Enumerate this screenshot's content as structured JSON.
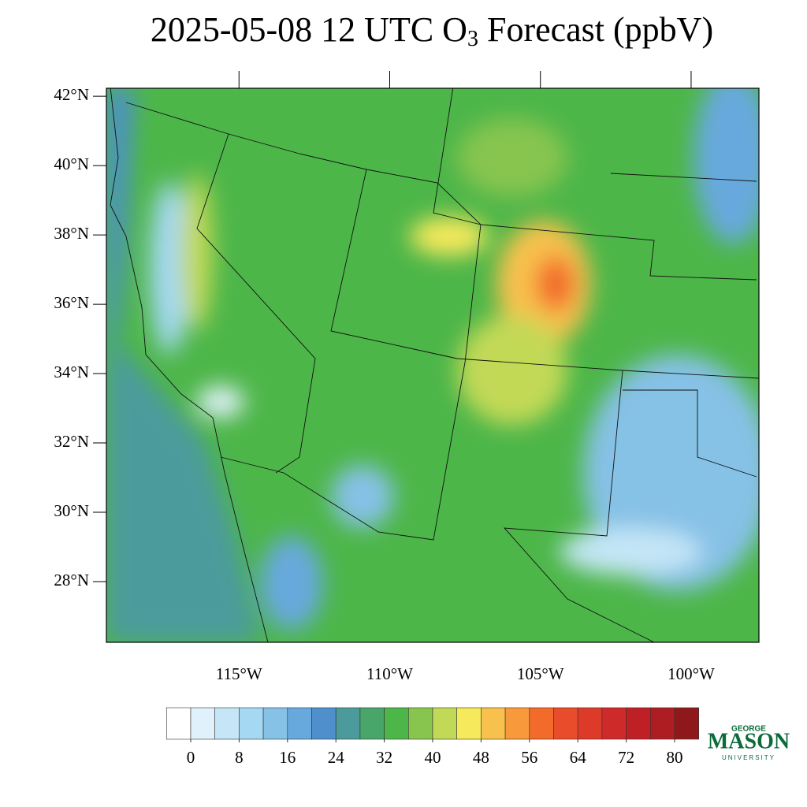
{
  "chart_data": {
    "type": "map",
    "title": {
      "prefix": "2025-05-08 12 UTC O",
      "subscript": "3",
      "suffix": " Forecast (ppbV)"
    },
    "ylim": [
      26.25,
      42.23
    ],
    "yticks": [
      {
        "value": 28,
        "label": "28°N"
      },
      {
        "value": 30,
        "label": "30°N"
      },
      {
        "value": 32,
        "label": "32°N"
      },
      {
        "value": 34,
        "label": "34°N"
      },
      {
        "value": 36,
        "label": "36°N"
      },
      {
        "value": 38,
        "label": "38°N"
      },
      {
        "value": 40,
        "label": "40°N"
      },
      {
        "value": 42,
        "label": "42°N"
      }
    ],
    "xlim": [
      -119.4,
      -97.75
    ],
    "xticks": [
      {
        "value": -115,
        "label": "115°W"
      },
      {
        "value": -110,
        "label": "110°W"
      },
      {
        "value": -105,
        "label": "105°W"
      },
      {
        "value": -100,
        "label": "100°W"
      }
    ],
    "colorbar": {
      "ticks": [
        0,
        8,
        16,
        24,
        32,
        40,
        48,
        56,
        64,
        72,
        80
      ],
      "colors": [
        "#ffffff",
        "#e1f1fb",
        "#c4e6f7",
        "#a5d8f3",
        "#86c1e6",
        "#68a9dd",
        "#4e8fcc",
        "#4b9b9c",
        "#48a66a",
        "#4db649",
        "#87c54f",
        "#c2d957",
        "#f6e95b",
        "#f8c14e",
        "#f89a3b",
        "#f26b2a",
        "#e84c2a",
        "#dd3a2a",
        "#cf2a2a",
        "#bf2026",
        "#ad1d22",
        "#8f181b"
      ]
    }
  },
  "logo": {
    "top": "GEORGE",
    "main": "MASON",
    "bottom": "UNIVERSITY"
  }
}
